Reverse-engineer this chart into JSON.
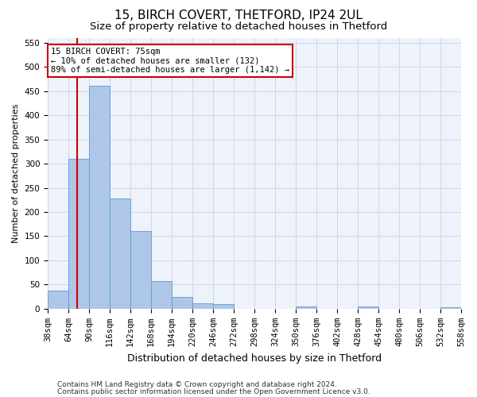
{
  "title1": "15, BIRCH COVERT, THETFORD, IP24 2UL",
  "title2": "Size of property relative to detached houses in Thetford",
  "xlabel": "Distribution of detached houses by size in Thetford",
  "ylabel": "Number of detached properties",
  "footer1": "Contains HM Land Registry data © Crown copyright and database right 2024.",
  "footer2": "Contains public sector information licensed under the Open Government Licence v3.0.",
  "annotation_title": "15 BIRCH COVERT: 75sqm",
  "annotation_line1": "← 10% of detached houses are smaller (132)",
  "annotation_line2": "89% of semi-detached houses are larger (1,142) →",
  "property_size": 75,
  "bin_edges": [
    38,
    64,
    90,
    116,
    142,
    168,
    194,
    220,
    246,
    272,
    298,
    324,
    350,
    376,
    402,
    428,
    454,
    480,
    506,
    532,
    558
  ],
  "bar_heights": [
    38,
    310,
    460,
    228,
    160,
    58,
    25,
    12,
    10,
    0,
    0,
    0,
    5,
    0,
    0,
    5,
    0,
    0,
    0,
    3
  ],
  "bar_color": "#aec6e8",
  "bar_edge_color": "#5b9bd5",
  "vline_color": "#cc0000",
  "vline_x": 75,
  "annotation_box_color": "#cc0000",
  "ylim": [
    0,
    560
  ],
  "yticks": [
    0,
    50,
    100,
    150,
    200,
    250,
    300,
    350,
    400,
    450,
    500,
    550
  ],
  "grid_color": "#c8d4e8",
  "bg_color": "#eef2fb",
  "title1_fontsize": 11,
  "title2_fontsize": 9.5,
  "xlabel_fontsize": 9,
  "ylabel_fontsize": 8,
  "tick_fontsize": 7.5,
  "annotation_fontsize": 7.5,
  "footer_fontsize": 6.5
}
